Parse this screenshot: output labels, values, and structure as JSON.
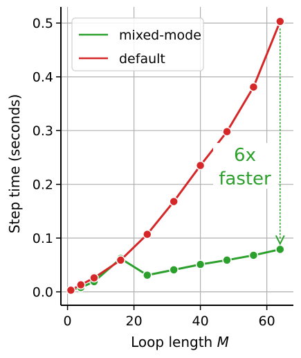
{
  "chart_data": {
    "type": "line",
    "xlabel": "Loop length",
    "xlabel_var": "M",
    "ylabel": "Step time (seconds)",
    "xlim": [
      -2,
      68
    ],
    "ylim": [
      -0.025,
      0.53
    ],
    "xticks": [
      0,
      20,
      40,
      60
    ],
    "yticks": [
      0.0,
      0.1,
      0.2,
      0.3,
      0.4,
      0.5
    ],
    "ytick_labels": [
      "0.0",
      "0.1",
      "0.2",
      "0.3",
      "0.4",
      "0.5"
    ],
    "grid": true,
    "legend_position": "top-left",
    "series": [
      {
        "name": "mixed-mode",
        "color": "#2ca02c",
        "x": [
          1,
          4,
          8,
          16,
          24,
          32,
          40,
          48,
          56,
          64
        ],
        "y": [
          0.003,
          0.008,
          0.019,
          0.062,
          0.031,
          0.041,
          0.051,
          0.059,
          0.068,
          0.079
        ]
      },
      {
        "name": "default",
        "color": "#d62728",
        "x": [
          1,
          4,
          8,
          16,
          24,
          32,
          40,
          48,
          56,
          64
        ],
        "y": [
          0.003,
          0.013,
          0.026,
          0.059,
          0.107,
          0.168,
          0.235,
          0.298,
          0.381,
          0.503
        ]
      }
    ],
    "annotation": {
      "lines": [
        "6x",
        "faster"
      ],
      "color": "#2ca02c",
      "arrow_x": 64,
      "arrow_from_y": 0.503,
      "arrow_to_y": 0.079
    }
  }
}
